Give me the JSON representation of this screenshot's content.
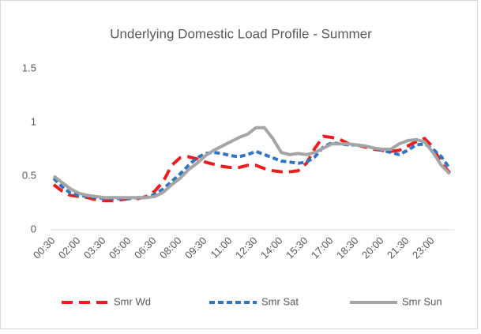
{
  "chart_data": {
    "type": "line",
    "title": "Underlying Domestic Load Profile - Summer",
    "categories": [
      "00:30",
      null,
      null,
      "02:00",
      null,
      null,
      "03:30",
      null,
      null,
      "05:00",
      null,
      null,
      "06:30",
      null,
      null,
      "08:00",
      null,
      null,
      "09:30",
      null,
      null,
      "11:00",
      null,
      null,
      "12:30",
      null,
      null,
      "14:00",
      null,
      null,
      "15:30",
      null,
      null,
      "17:00",
      null,
      null,
      "18:30",
      null,
      null,
      "20:00",
      null,
      null,
      "21:30",
      null,
      null,
      "23:00",
      null,
      null
    ],
    "series": [
      {
        "name": "Smr Wd",
        "color": "#ee1c1c",
        "dash": "14 8",
        "values": [
          0.42,
          0.36,
          0.32,
          0.31,
          0.3,
          0.28,
          0.27,
          0.27,
          0.28,
          0.29,
          0.29,
          0.31,
          0.36,
          0.45,
          0.6,
          0.67,
          0.68,
          0.66,
          0.63,
          0.61,
          0.59,
          0.58,
          0.58,
          0.6,
          0.6,
          0.57,
          0.55,
          0.54,
          0.54,
          0.55,
          0.62,
          0.76,
          0.87,
          0.86,
          0.84,
          0.8,
          0.79,
          0.77,
          0.75,
          0.74,
          0.73,
          0.74,
          0.78,
          0.82,
          0.85,
          0.77,
          0.62,
          0.53
        ]
      },
      {
        "name": "Smr Sat",
        "color": "#2e75c6",
        "dash": "7 4",
        "values": [
          0.48,
          0.4,
          0.34,
          0.32,
          0.31,
          0.3,
          0.29,
          0.29,
          0.29,
          0.29,
          0.3,
          0.3,
          0.33,
          0.38,
          0.45,
          0.52,
          0.6,
          0.67,
          0.71,
          0.72,
          0.71,
          0.69,
          0.68,
          0.7,
          0.73,
          0.7,
          0.67,
          0.64,
          0.63,
          0.62,
          0.63,
          0.68,
          0.77,
          0.81,
          0.8,
          0.79,
          0.79,
          0.78,
          0.76,
          0.74,
          0.72,
          0.7,
          0.74,
          0.79,
          0.8,
          0.75,
          0.68,
          0.57
        ]
      },
      {
        "name": "Smr Sun",
        "color": "#a5a5a5",
        "dash": "none",
        "values": [
          0.5,
          0.44,
          0.38,
          0.34,
          0.32,
          0.31,
          0.3,
          0.3,
          0.3,
          0.3,
          0.3,
          0.3,
          0.31,
          0.35,
          0.42,
          0.48,
          0.56,
          0.62,
          0.69,
          0.74,
          0.78,
          0.82,
          0.86,
          0.89,
          0.95,
          0.95,
          0.85,
          0.72,
          0.7,
          0.71,
          0.7,
          0.72,
          0.76,
          0.8,
          0.8,
          0.8,
          0.79,
          0.78,
          0.76,
          0.75,
          0.75,
          0.8,
          0.83,
          0.84,
          0.82,
          0.72,
          0.6,
          0.52
        ]
      }
    ],
    "ylim": [
      0,
      1.5
    ],
    "yticks": [
      0,
      0.5,
      1,
      1.5
    ],
    "grid": false,
    "legend": "bottom"
  }
}
